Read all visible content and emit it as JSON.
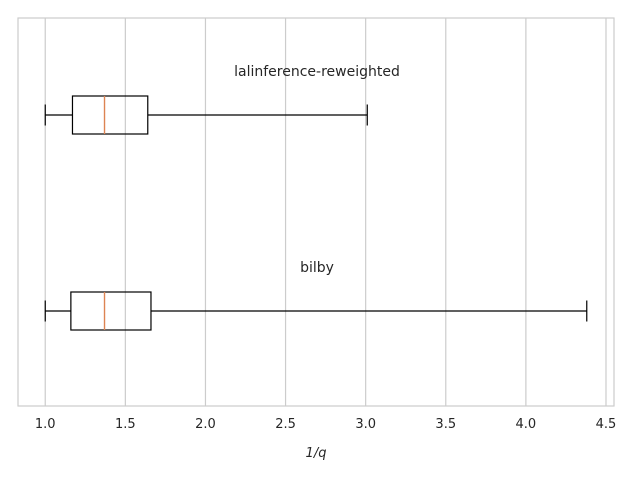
{
  "chart_data": {
    "type": "box",
    "orientation": "horizontal",
    "xlabel": "1/q",
    "xlim": [
      0.83,
      4.55
    ],
    "xticks": [
      1.0,
      1.5,
      2.0,
      2.5,
      3.0,
      3.5,
      4.0,
      4.5
    ],
    "xtick_labels": [
      "1.0",
      "1.5",
      "2.0",
      "2.5",
      "3.0",
      "3.5",
      "4.0",
      "4.5"
    ],
    "grid": "vertical",
    "series": [
      {
        "name": "lalinference-reweighted",
        "whisker_low": 1.0,
        "q1": 1.17,
        "median": 1.37,
        "q3": 1.64,
        "whisker_high": 3.01
      },
      {
        "name": "bilby",
        "whisker_low": 1.0,
        "q1": 1.16,
        "median": 1.37,
        "q3": 1.66,
        "whisker_high": 4.38
      }
    ],
    "colors": {
      "box": "#000000",
      "median": "#dd8452",
      "grid": "#cccccc",
      "spine": "#cccccc"
    }
  }
}
